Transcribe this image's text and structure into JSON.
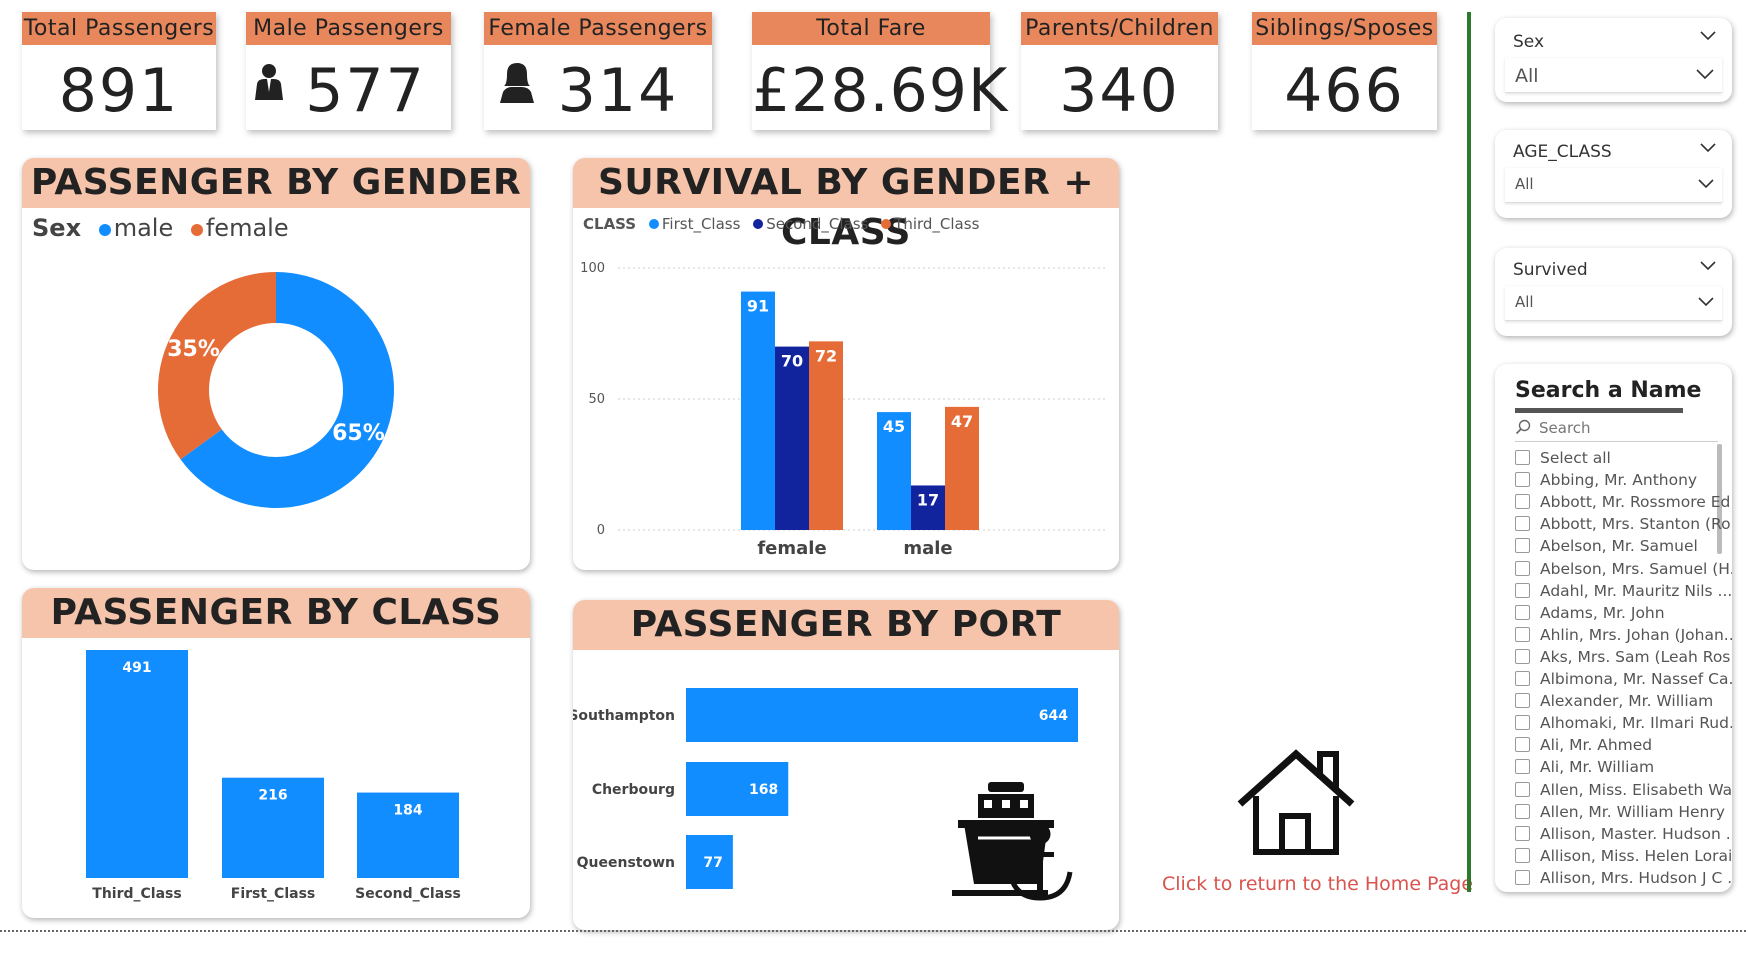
{
  "kpis": {
    "total_passengers": {
      "label": "Total Passengers",
      "value": "891"
    },
    "male_passengers": {
      "label": "Male Passengers",
      "value": "577"
    },
    "female_passengers": {
      "label": "Female Passengers",
      "value": "314"
    },
    "total_fare": {
      "label": "Total Fare",
      "value": "£28.69K"
    },
    "parents_children": {
      "label": "Parents/Children",
      "value": "340"
    },
    "siblings_spouses": {
      "label": "Siblings/Sposes",
      "value": "466"
    }
  },
  "colors": {
    "header_orange": "#e9875c",
    "panel_header": "#f6c3ab",
    "blue": "#118dff",
    "dark_blue": "#12239e",
    "orange": "#e66c37",
    "divider_green": "#2d7a2d",
    "link_red": "#d9534f"
  },
  "gender_panel": {
    "title": "PASSENGER BY GENDER",
    "legend_title": "Sex",
    "legend": [
      "male",
      "female"
    ]
  },
  "survival_panel": {
    "title": "SURVIVAL BY GENDER + CLASS",
    "legend_title": "CLASS",
    "legend": [
      "First_Class",
      "Second_Class",
      "Third_Class"
    ]
  },
  "class_panel": {
    "title": "PASSENGER BY CLASS"
  },
  "port_panel": {
    "title": "PASSENGER BY PORT"
  },
  "chart_data": [
    {
      "type": "pie",
      "title": "PASSENGER BY GENDER",
      "categories": [
        "male",
        "female"
      ],
      "values": [
        65,
        35
      ],
      "labels": [
        "65%",
        "35%"
      ],
      "colors": [
        "#118dff",
        "#e66c37"
      ],
      "legend": "top-left"
    },
    {
      "type": "bar",
      "title": "SURVIVAL BY GENDER + CLASS",
      "categories": [
        "female",
        "male"
      ],
      "series": [
        {
          "name": "First_Class",
          "values": [
            91,
            45
          ],
          "color": "#118dff"
        },
        {
          "name": "Second_Class",
          "values": [
            70,
            17
          ],
          "color": "#12239e"
        },
        {
          "name": "Third_Class",
          "values": [
            72,
            47
          ],
          "color": "#e66c37"
        }
      ],
      "yticks": [
        "0",
        "50",
        "100"
      ],
      "ylim": [
        0,
        100
      ],
      "grid": true,
      "legend": "top-left"
    },
    {
      "type": "bar",
      "title": "PASSENGER BY CLASS",
      "categories": [
        "Third_Class",
        "First_Class",
        "Second_Class"
      ],
      "values": [
        491,
        216,
        184
      ],
      "color": "#118dff"
    },
    {
      "type": "bar",
      "orientation": "horizontal",
      "title": "PASSENGER BY PORT",
      "categories": [
        "Southampton",
        "Cherbourg",
        "Queenstown"
      ],
      "values": [
        644,
        168,
        77
      ],
      "color": "#118dff"
    }
  ],
  "home": {
    "link_text": "Click to return to the Home Page",
    "icon": "house-icon"
  },
  "port_icon": "ship-anchor-icon",
  "slicers": [
    {
      "title": "Sex",
      "value": "All"
    },
    {
      "title": "AGE_CLASS",
      "value": "All"
    },
    {
      "title": "Survived",
      "value": "All"
    }
  ],
  "name_search": {
    "title": "Search a Name",
    "placeholder": "Search",
    "items": [
      "Select all",
      "Abbing, Mr. Anthony",
      "Abbott, Mr. Rossmore Ed...",
      "Abbott, Mrs. Stanton (Ro...",
      "Abelson, Mr. Samuel",
      "Abelson, Mrs. Samuel (H...",
      "Adahl, Mr. Mauritz Nils ...",
      "Adams, Mr. John",
      "Ahlin, Mrs. Johan (Johan...",
      "Aks, Mrs. Sam (Leah Ros...",
      "Albimona, Mr. Nassef Ca...",
      "Alexander, Mr. William",
      "Alhomaki, Mr. Ilmari Rud...",
      "Ali, Mr. Ahmed",
      "Ali, Mr. William",
      "Allen, Miss. Elisabeth Wal...",
      "Allen, Mr. William Henry",
      "Allison, Master. Hudson ...",
      "Allison, Miss. Helen Lorai...",
      "Allison, Mrs. Hudson J C ..."
    ]
  }
}
